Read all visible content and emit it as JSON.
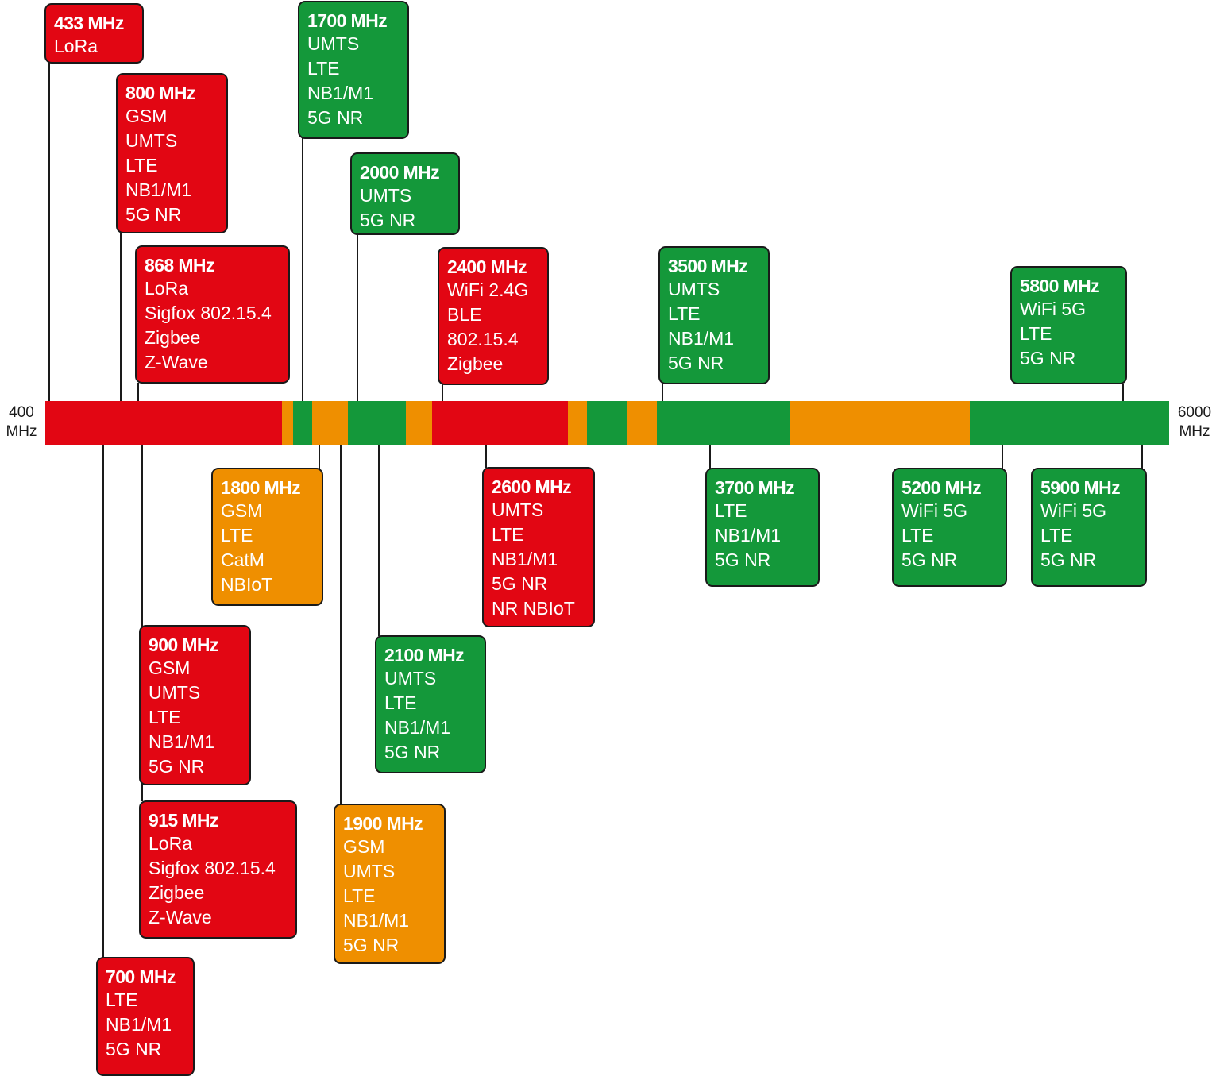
{
  "axis": {
    "start_label": "400\nMHz",
    "end_label": "6000\nMHz"
  },
  "colors": {
    "red": "#e20613",
    "orange": "#ef8f00",
    "green": "#14983a"
  },
  "spectrum_bar": [
    {
      "color": "red",
      "weight": 298
    },
    {
      "color": "orange",
      "weight": 14
    },
    {
      "color": "green",
      "weight": 24
    },
    {
      "color": "orange",
      "weight": 45
    },
    {
      "color": "green",
      "weight": 73
    },
    {
      "color": "orange",
      "weight": 33
    },
    {
      "color": "red",
      "weight": 171
    },
    {
      "color": "orange",
      "weight": 24
    },
    {
      "color": "green",
      "weight": 51
    },
    {
      "color": "orange",
      "weight": 37
    },
    {
      "color": "green",
      "weight": 167
    },
    {
      "color": "orange",
      "weight": 227
    },
    {
      "color": "green",
      "weight": 251
    }
  ],
  "bands": [
    {
      "id": "433",
      "frequency": "433 MHz",
      "color": "red",
      "side": "top",
      "technologies": [
        "LoRa"
      ]
    },
    {
      "id": "800",
      "frequency": "800 MHz",
      "color": "red",
      "side": "top",
      "technologies": [
        "GSM",
        "UMTS",
        "LTE",
        "NB1/M1",
        "5G NR"
      ]
    },
    {
      "id": "868",
      "frequency": "868 MHz",
      "color": "red",
      "side": "top",
      "technologies": [
        "LoRa",
        "Sigfox 802.15.4",
        "Zigbee",
        "Z-Wave"
      ]
    },
    {
      "id": "1700",
      "frequency": "1700 MHz",
      "color": "green",
      "side": "top",
      "technologies": [
        "UMTS",
        "LTE",
        "NB1/M1",
        "5G NR"
      ]
    },
    {
      "id": "2000",
      "frequency": "2000 MHz",
      "color": "green",
      "side": "top",
      "technologies": [
        "UMTS",
        "5G NR"
      ]
    },
    {
      "id": "2400",
      "frequency": "2400 MHz",
      "color": "red",
      "side": "top",
      "technologies": [
        "WiFi 2.4G",
        "BLE",
        "802.15.4",
        "Zigbee"
      ]
    },
    {
      "id": "3500",
      "frequency": "3500 MHz",
      "color": "green",
      "side": "top",
      "technologies": [
        "UMTS",
        "LTE",
        "NB1/M1",
        "5G NR"
      ]
    },
    {
      "id": "5800",
      "frequency": "5800 MHz",
      "color": "green",
      "side": "top",
      "technologies": [
        "WiFi 5G",
        "LTE",
        "5G NR"
      ]
    },
    {
      "id": "700",
      "frequency": "700 MHz",
      "color": "red",
      "side": "bottom",
      "technologies": [
        "LTE",
        "NB1/M1",
        "5G NR"
      ]
    },
    {
      "id": "900",
      "frequency": "900 MHz",
      "color": "red",
      "side": "bottom",
      "technologies": [
        "GSM",
        "UMTS",
        "LTE",
        "NB1/M1",
        "5G NR"
      ]
    },
    {
      "id": "915",
      "frequency": "915 MHz",
      "color": "red",
      "side": "bottom",
      "technologies": [
        "LoRa",
        "Sigfox 802.15.4",
        "Zigbee",
        "Z-Wave"
      ]
    },
    {
      "id": "1800",
      "frequency": "1800 MHz",
      "color": "orange",
      "side": "bottom",
      "technologies": [
        "GSM",
        "LTE",
        "CatM",
        "NBIoT"
      ]
    },
    {
      "id": "1900",
      "frequency": "1900 MHz",
      "color": "orange",
      "side": "bottom",
      "technologies": [
        "GSM",
        "UMTS",
        "LTE",
        "NB1/M1",
        "5G NR"
      ]
    },
    {
      "id": "2100",
      "frequency": "2100 MHz",
      "color": "green",
      "side": "bottom",
      "technologies": [
        "UMTS",
        "LTE",
        "NB1/M1",
        "5G NR"
      ]
    },
    {
      "id": "2600",
      "frequency": "2600 MHz",
      "color": "red",
      "side": "bottom",
      "technologies": [
        "UMTS",
        "LTE",
        "NB1/M1",
        "5G NR",
        "NR NBIoT"
      ]
    },
    {
      "id": "3700",
      "frequency": "3700 MHz",
      "color": "green",
      "side": "bottom",
      "technologies": [
        "LTE",
        "NB1/M1",
        "5G NR"
      ]
    },
    {
      "id": "5200",
      "frequency": "5200 MHz",
      "color": "green",
      "side": "bottom",
      "technologies": [
        "WiFi 5G",
        "LTE",
        "5G NR"
      ]
    },
    {
      "id": "5900",
      "frequency": "5900 MHz",
      "color": "green",
      "side": "bottom",
      "technologies": [
        "WiFi 5G",
        "LTE",
        "5G NR"
      ]
    }
  ]
}
